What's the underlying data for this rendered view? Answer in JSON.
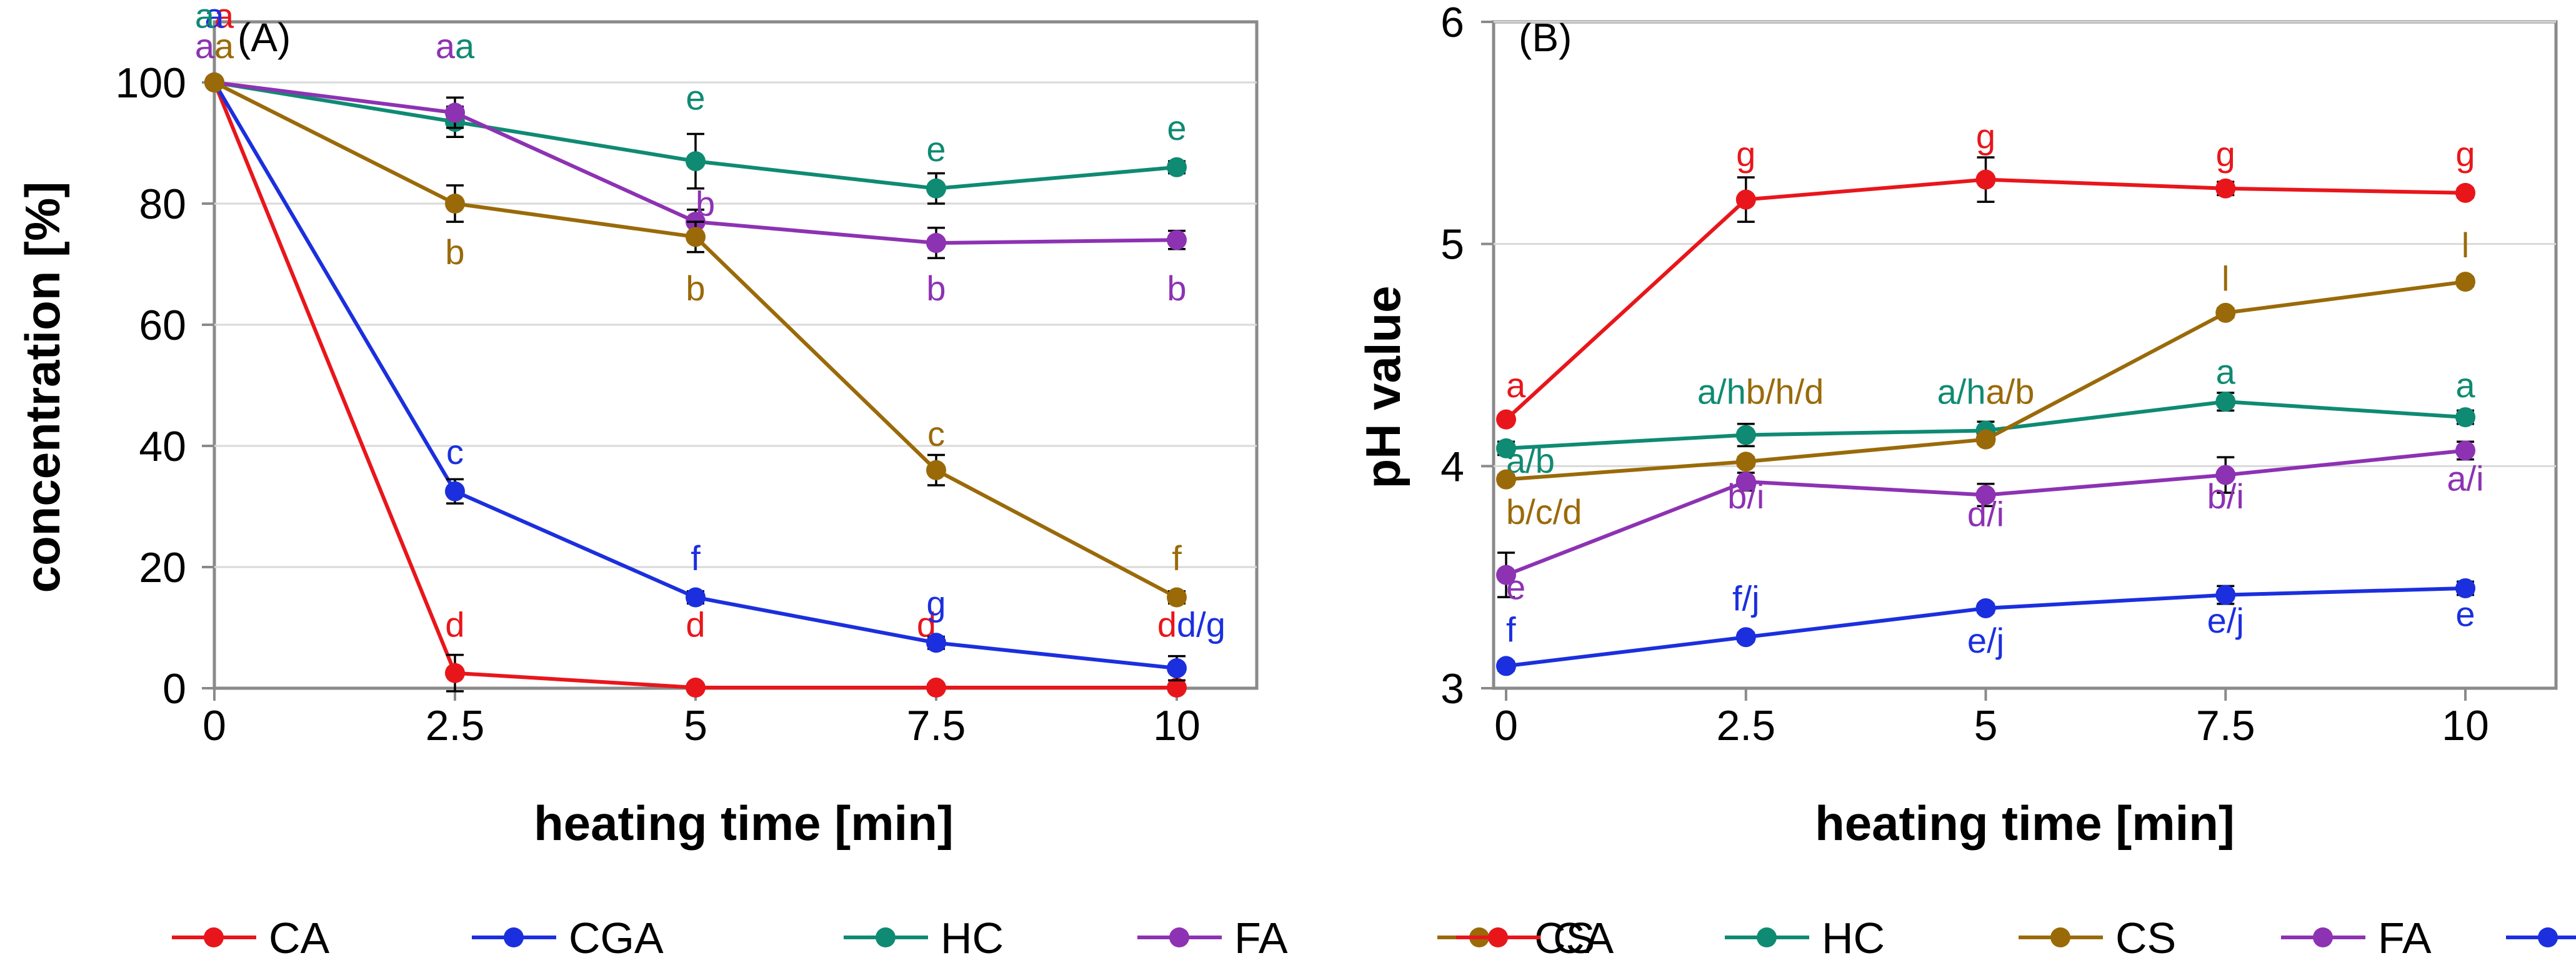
{
  "chart_data": [
    {
      "type": "line",
      "panel": "(A)",
      "title": "(A)",
      "xlabel": "heating time [min]",
      "ylabel": "concentration [%]",
      "x": [
        0,
        2.5,
        5,
        7.5,
        10
      ],
      "x_ticks": [
        "0",
        "2.5",
        "5",
        "7.5",
        "10"
      ],
      "y_ticks": [
        "0",
        "20",
        "40",
        "60",
        "80",
        "100"
      ],
      "xlim": [
        0,
        10
      ],
      "ylim": [
        0,
        110
      ],
      "legend_position": "bottom",
      "legend_order": [
        "CA",
        "CGA",
        "HC",
        "FA",
        "CS"
      ],
      "series": [
        {
          "name": "CA",
          "color": "#e8161b",
          "values": [
            100,
            2.5,
            0.1,
            0.1,
            0.1
          ],
          "errors": [
            0,
            3,
            0,
            0,
            0
          ],
          "labels": [
            {
              "text": "a",
              "x": 0,
              "y": 109,
              "anchor": "start"
            },
            {
              "text": "d",
              "x": 2.5,
              "y": 8.5,
              "anchor": "middle"
            },
            {
              "text": "d",
              "x": 5,
              "y": 8.5,
              "anchor": "middle"
            },
            {
              "text": "d",
              "x": 7.5,
              "y": 8.5,
              "anchor": "end"
            },
            {
              "text": "d",
              "x": 10,
              "y": 8.5,
              "anchor": "end"
            }
          ]
        },
        {
          "name": "CGA",
          "color": "#1b2fde",
          "values": [
            100,
            32.5,
            15,
            7.5,
            3.3
          ],
          "errors": [
            0,
            2,
            1,
            1,
            2
          ],
          "labels": [
            {
              "text": "a",
              "x": 0,
              "y": 109,
              "anchor": "middle"
            },
            {
              "text": "c",
              "x": 2.5,
              "y": 37,
              "anchor": "middle"
            },
            {
              "text": "f",
              "x": 5,
              "y": 19.5,
              "anchor": "middle"
            },
            {
              "text": "g",
              "x": 7.5,
              "y": 12,
              "anchor": "middle"
            },
            {
              "text": "d/g",
              "x": 10,
              "y": 8.5,
              "anchor": "start"
            }
          ]
        },
        {
          "name": "HC",
          "color": "#0f8a73",
          "values": [
            100,
            93.5,
            87,
            82.5,
            86
          ],
          "errors": [
            0,
            2.5,
            4.5,
            2.5,
            1
          ],
          "labels": [
            {
              "text": "a",
              "x": 0,
              "y": 109,
              "anchor": "end"
            },
            {
              "text": "a",
              "x": 2.5,
              "y": 104,
              "anchor": "start"
            },
            {
              "text": "e",
              "x": 5,
              "y": 95.5,
              "anchor": "middle"
            },
            {
              "text": "e",
              "x": 7.5,
              "y": 87,
              "anchor": "middle"
            },
            {
              "text": "e",
              "x": 10,
              "y": 90.5,
              "anchor": "middle"
            }
          ]
        },
        {
          "name": "FA",
          "color": "#8d32b3",
          "values": [
            100,
            95,
            77,
            73.5,
            74
          ],
          "errors": [
            0,
            2.5,
            2,
            2.5,
            1.5
          ],
          "labels": [
            {
              "text": "a",
              "x": 0,
              "y": 104,
              "anchor": "end"
            },
            {
              "text": "a",
              "x": 2.5,
              "y": 104,
              "anchor": "end"
            },
            {
              "text": "b",
              "x": 5,
              "y": 78,
              "anchor": "start"
            },
            {
              "text": "b",
              "x": 7.5,
              "y": 64,
              "anchor": "middle"
            },
            {
              "text": "b",
              "x": 10,
              "y": 64,
              "anchor": "middle"
            }
          ]
        },
        {
          "name": "CS",
          "color": "#9a6a09",
          "values": [
            100,
            80,
            74.5,
            36,
            15
          ],
          "errors": [
            0,
            3,
            2.5,
            2.5,
            1
          ],
          "labels": [
            {
              "text": "a",
              "x": 0,
              "y": 104,
              "anchor": "start"
            },
            {
              "text": "b",
              "x": 2.5,
              "y": 70,
              "anchor": "middle"
            },
            {
              "text": "b",
              "x": 5,
              "y": 64,
              "anchor": "middle"
            },
            {
              "text": "c",
              "x": 7.5,
              "y": 40,
              "anchor": "middle"
            },
            {
              "text": "f",
              "x": 10,
              "y": 19.5,
              "anchor": "middle"
            }
          ]
        }
      ]
    },
    {
      "type": "line",
      "panel": "(B)",
      "title": "(B)",
      "xlabel": "heating time [min]",
      "ylabel": "pH value",
      "x": [
        0,
        2.5,
        5,
        7.5,
        10
      ],
      "x_ticks": [
        "0",
        "2.5",
        "5",
        "7.5",
        "10"
      ],
      "y_ticks": [
        "3",
        "4",
        "5",
        "6"
      ],
      "xlim": [
        0,
        10
      ],
      "ylim": [
        3,
        6
      ],
      "legend_position": "bottom",
      "legend_order": [
        "CA",
        "HC",
        "CS",
        "FA",
        "CGA"
      ],
      "series": [
        {
          "name": "CA",
          "color": "#e8161b",
          "values": [
            4.21,
            5.2,
            5.29,
            5.25,
            5.23
          ],
          "errors": [
            0,
            0.1,
            0.1,
            0.03,
            0.02
          ],
          "labels": [
            {
              "text": "a",
              "x": 0,
              "y": 4.31,
              "anchor": "start"
            },
            {
              "text": "g",
              "x": 2.5,
              "y": 5.35,
              "anchor": "middle"
            },
            {
              "text": "g",
              "x": 5,
              "y": 5.43,
              "anchor": "middle"
            },
            {
              "text": "g",
              "x": 7.5,
              "y": 5.35,
              "anchor": "middle"
            },
            {
              "text": "g",
              "x": 10,
              "y": 5.35,
              "anchor": "middle"
            }
          ]
        },
        {
          "name": "HC",
          "color": "#0f8a73",
          "values": [
            4.08,
            4.14,
            4.16,
            4.29,
            4.22
          ],
          "errors": [
            0.03,
            0.05,
            0.04,
            0.04,
            0.03
          ],
          "labels": [
            {
              "text": "a/b",
              "x": 0,
              "y": 3.97,
              "anchor": "start"
            },
            {
              "text": "a/h",
              "x": 2.5,
              "y": 4.28,
              "anchor": "end"
            },
            {
              "text": "a/h",
              "x": 5,
              "y": 4.28,
              "anchor": "end"
            },
            {
              "text": "a",
              "x": 7.5,
              "y": 4.37,
              "anchor": "middle"
            },
            {
              "text": "a",
              "x": 10,
              "y": 4.31,
              "anchor": "middle"
            }
          ]
        },
        {
          "name": "CS",
          "color": "#9a6a09",
          "values": [
            3.94,
            4.02,
            4.12,
            4.69,
            4.83
          ],
          "errors": [
            0.02,
            0.02,
            0.02,
            0.02,
            0.02
          ],
          "labels": [
            {
              "text": "b/c/d",
              "x": 0,
              "y": 3.74,
              "anchor": "start"
            },
            {
              "text": "b/h/d",
              "x": 2.5,
              "y": 4.28,
              "anchor": "start"
            },
            {
              "text": "a/b",
              "x": 5,
              "y": 4.28,
              "anchor": "start"
            },
            {
              "text": "l",
              "x": 7.5,
              "y": 4.79,
              "anchor": "middle"
            },
            {
              "text": "l",
              "x": 10,
              "y": 4.94,
              "anchor": "middle"
            }
          ]
        },
        {
          "name": "FA",
          "color": "#8d32b3",
          "values": [
            3.51,
            3.93,
            3.87,
            3.96,
            4.07
          ],
          "errors": [
            0.1,
            0.04,
            0.05,
            0.08,
            0.04
          ],
          "labels": [
            {
              "text": "e",
              "x": 0,
              "y": 3.4,
              "anchor": "start"
            },
            {
              "text": "b/i",
              "x": 2.5,
              "y": 3.81,
              "anchor": "middle"
            },
            {
              "text": "d/i",
              "x": 5,
              "y": 3.73,
              "anchor": "middle"
            },
            {
              "text": "b/i",
              "x": 7.5,
              "y": 3.81,
              "anchor": "middle"
            },
            {
              "text": "a/i",
              "x": 10,
              "y": 3.89,
              "anchor": "middle"
            }
          ]
        },
        {
          "name": "CGA",
          "color": "#1b2fde",
          "values": [
            3.1,
            3.23,
            3.36,
            3.42,
            3.45
          ],
          "errors": [
            0.02,
            0.02,
            0.02,
            0.04,
            0.03
          ],
          "labels": [
            {
              "text": "f",
              "x": 0,
              "y": 3.21,
              "anchor": "start"
            },
            {
              "text": "f/j",
              "x": 2.5,
              "y": 3.35,
              "anchor": "middle"
            },
            {
              "text": "e/j",
              "x": 5,
              "y": 3.16,
              "anchor": "middle"
            },
            {
              "text": "e/j",
              "x": 7.5,
              "y": 3.25,
              "anchor": "middle"
            },
            {
              "text": "e",
              "x": 10,
              "y": 3.28,
              "anchor": "middle"
            }
          ]
        }
      ]
    }
  ]
}
